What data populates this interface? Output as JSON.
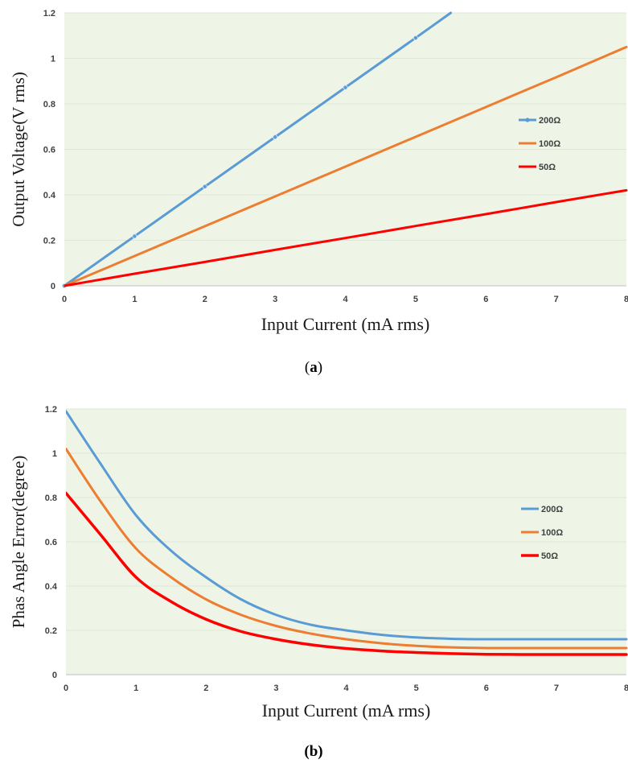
{
  "captions": {
    "a_open": "(",
    "a_letter": "a",
    "a_close": ")",
    "b": "(b)"
  },
  "colors": {
    "blue": "#5b9bd5",
    "orange": "#ed7d31",
    "red": "#ff0000",
    "plot_bg": "#eef5e6"
  },
  "chart_data": [
    {
      "type": "line",
      "xlabel": "Input Current (mA rms)",
      "ylabel": "Output Voltage(V rms)",
      "xlim": [
        0,
        8
      ],
      "ylim": [
        0,
        1.2
      ],
      "xticks": [
        "0",
        "1",
        "2",
        "3",
        "4",
        "5",
        "6",
        "7",
        "8"
      ],
      "yticks": [
        "0",
        "0.2",
        "0.4",
        "0.6",
        "0.8",
        "1",
        "1.2"
      ],
      "grid": true,
      "legend_position": "right",
      "series": [
        {
          "name": "200Ω",
          "color": "#5b9bd5",
          "markers": true,
          "width": 3,
          "x": [
            0,
            1,
            2,
            3,
            4,
            5,
            5.5
          ],
          "y": [
            0,
            0.218,
            0.436,
            0.654,
            0.872,
            1.09,
            1.2
          ]
        },
        {
          "name": "100Ω",
          "color": "#ed7d31",
          "markers": false,
          "width": 3,
          "x": [
            0,
            1,
            2,
            3,
            4,
            5,
            6,
            7,
            8
          ],
          "y": [
            0,
            0.131,
            0.262,
            0.393,
            0.524,
            0.655,
            0.786,
            0.917,
            1.05
          ]
        },
        {
          "name": "50Ω",
          "color": "#ff0000",
          "markers": false,
          "width": 3,
          "x": [
            0,
            1,
            2,
            3,
            4,
            5,
            6,
            7,
            8
          ],
          "y": [
            0,
            0.053,
            0.105,
            0.158,
            0.21,
            0.263,
            0.315,
            0.368,
            0.42
          ]
        }
      ]
    },
    {
      "type": "line",
      "xlabel": "Input Current (mA rms)",
      "ylabel": "Phas Angle Error(degree)",
      "xlim": [
        0,
        8
      ],
      "ylim": [
        0,
        1.2
      ],
      "xticks": [
        "0",
        "1",
        "2",
        "3",
        "4",
        "5",
        "6",
        "7",
        "8"
      ],
      "yticks": [
        "0",
        "0.2",
        "0.4",
        "0.6",
        "0.8",
        "1",
        "1.2"
      ],
      "grid": true,
      "legend_position": "right",
      "series": [
        {
          "name": "200Ω",
          "color": "#5b9bd5",
          "markers": false,
          "width": 3,
          "x": [
            0,
            0.5,
            1,
            1.5,
            2,
            2.5,
            3,
            3.5,
            4,
            4.5,
            5,
            5.5,
            6,
            6.5,
            7,
            7.5,
            8
          ],
          "y": [
            1.19,
            0.95,
            0.72,
            0.56,
            0.44,
            0.34,
            0.27,
            0.225,
            0.2,
            0.18,
            0.168,
            0.162,
            0.16,
            0.16,
            0.16,
            0.16,
            0.16
          ]
        },
        {
          "name": "100Ω",
          "color": "#ed7d31",
          "markers": false,
          "width": 3,
          "x": [
            0,
            0.5,
            1,
            1.5,
            2,
            2.5,
            3,
            3.5,
            4,
            4.5,
            5,
            5.5,
            6,
            6.5,
            7,
            7.5,
            8
          ],
          "y": [
            1.02,
            0.78,
            0.57,
            0.44,
            0.34,
            0.27,
            0.22,
            0.185,
            0.16,
            0.142,
            0.13,
            0.123,
            0.12,
            0.12,
            0.12,
            0.12,
            0.12
          ]
        },
        {
          "name": "50Ω",
          "color": "#ff0000",
          "markers": false,
          "width": 3.5,
          "x": [
            0,
            0.5,
            1,
            1.5,
            2,
            2.5,
            3,
            3.5,
            4,
            4.5,
            5,
            5.5,
            6,
            6.5,
            7,
            7.5,
            8
          ],
          "y": [
            0.82,
            0.63,
            0.44,
            0.33,
            0.25,
            0.195,
            0.16,
            0.135,
            0.118,
            0.107,
            0.1,
            0.095,
            0.092,
            0.091,
            0.091,
            0.091,
            0.091
          ]
        }
      ]
    }
  ]
}
